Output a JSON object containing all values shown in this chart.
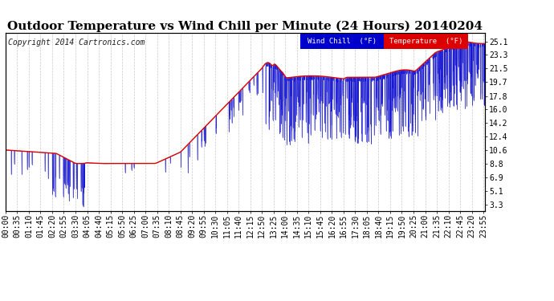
{
  "title": "Outdoor Temperature vs Wind Chill per Minute (24 Hours) 20140204",
  "copyright": "Copyright 2014 Cartronics.com",
  "legend_wind_chill": "Wind Chill  (°F)",
  "legend_temperature": "Temperature  (°F)",
  "yticks": [
    3.3,
    5.1,
    6.9,
    8.8,
    10.6,
    12.4,
    14.2,
    16.0,
    17.8,
    19.7,
    21.5,
    23.3,
    25.1
  ],
  "ylim": [
    2.5,
    26.2
  ],
  "bg_color": "#ffffff",
  "grid_color": "#bbbbbb",
  "temp_color": "#dd0000",
  "wind_chill_color": "#0000cc",
  "title_fontsize": 11,
  "tick_fontsize": 7,
  "copyright_fontsize": 7
}
